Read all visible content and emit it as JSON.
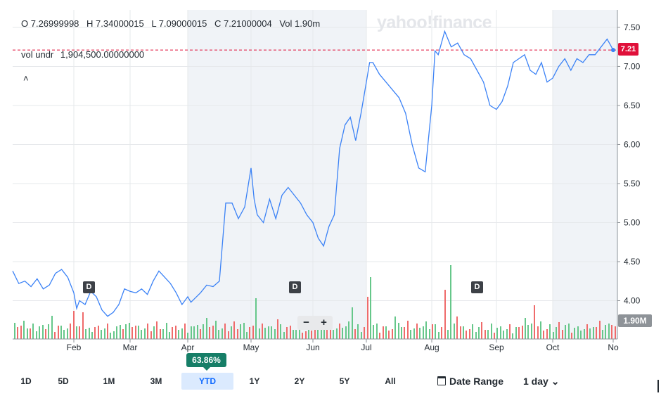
{
  "header": {
    "open": "O 7.26999998",
    "high": "H 7.34000015",
    "low": "L 7.09000015",
    "close": "C 7.21000004",
    "vol": "Vol 1.90m",
    "vol_label": "vol undr",
    "vol_value": "1,904,500.00000000",
    "collapse_icon": "chevron-up-icon"
  },
  "watermark": "yahoo!finance",
  "price_tag": "7.21",
  "volume_tag": "1.90M",
  "performance_badge": "63.86%",
  "zoom": {
    "minus": "−",
    "plus": "+"
  },
  "dividend_marker": "D",
  "ranges": [
    "1D",
    "5D",
    "1M",
    "3M",
    "YTD",
    "1Y",
    "2Y",
    "5Y",
    "All"
  ],
  "active_range": "YTD",
  "date_range_label": "Date Range",
  "interval_label": "1 day",
  "colors": {
    "line": "#3b82f6",
    "up_volume": "#66c78a",
    "down_volume": "#ef6b6b",
    "last_line": "#e0103a",
    "shade": "#f0f3f7"
  },
  "chart_data": {
    "type": "line",
    "x_tick_labels": [
      "Feb",
      "Mar",
      "Apr",
      "May",
      "Jun",
      "Jul",
      "Aug",
      "Sep",
      "Oct",
      "No"
    ],
    "y_tick_labels": [
      "7.50",
      "7.00",
      "6.50",
      "6.00",
      "5.50",
      "5.00",
      "4.50",
      "4.00"
    ],
    "ylim": [
      3.5,
      7.65
    ],
    "grid": true,
    "last_price": 7.21,
    "dividend_months": [
      "Feb",
      "Jun",
      "Aug"
    ],
    "series": [
      {
        "x_months": [
          0.0,
          0.1,
          0.2,
          0.3,
          0.4,
          0.5,
          0.6,
          0.7,
          0.8,
          0.9,
          1.0,
          1.05,
          1.1,
          1.2,
          1.3,
          1.4,
          1.5,
          1.6,
          1.7,
          1.8,
          1.9,
          2.0,
          2.1,
          2.2,
          2.3,
          2.4,
          2.5,
          2.6,
          2.7,
          2.8,
          2.9,
          3.0,
          3.05,
          3.1,
          3.2,
          3.3,
          3.4,
          3.5,
          3.6,
          3.7,
          3.8,
          3.9,
          4.0,
          4.05,
          4.1,
          4.2,
          4.3,
          4.4,
          4.5,
          4.6,
          4.7,
          4.8,
          4.9,
          5.0,
          5.1,
          5.2,
          5.3,
          5.4,
          5.5,
          5.6,
          5.7,
          5.8,
          5.9,
          6.0,
          6.05,
          6.1,
          6.2,
          6.3,
          6.4,
          6.5,
          6.6,
          6.7,
          6.8,
          6.9,
          7.0,
          7.05,
          7.1,
          7.2,
          7.3,
          7.4,
          7.5,
          7.6,
          7.7,
          7.8,
          7.9,
          8.0,
          8.1,
          8.2,
          8.3,
          8.4,
          8.5,
          8.6,
          8.7,
          8.8,
          8.9,
          9.0,
          9.1,
          9.2,
          9.3,
          9.4,
          9.5,
          9.6,
          9.7,
          9.8,
          9.9,
          10.0
        ],
        "values": [
          4.38,
          4.22,
          4.25,
          4.18,
          4.28,
          4.15,
          4.2,
          4.35,
          4.4,
          4.3,
          4.1,
          3.9,
          4.0,
          3.95,
          4.12,
          4.05,
          3.88,
          3.8,
          3.85,
          3.95,
          4.15,
          4.12,
          4.1,
          4.15,
          4.08,
          4.25,
          4.38,
          4.3,
          4.22,
          4.1,
          3.95,
          4.05,
          3.98,
          4.02,
          4.1,
          4.2,
          4.18,
          4.25,
          5.25,
          5.25,
          5.05,
          5.2,
          5.7,
          5.3,
          5.1,
          5.0,
          5.3,
          5.05,
          5.35,
          5.45,
          5.35,
          5.25,
          5.1,
          5.0,
          4.8,
          4.7,
          4.95,
          5.1,
          5.95,
          6.25,
          6.35,
          6.05,
          6.4,
          6.8,
          7.05,
          7.05,
          6.9,
          6.8,
          6.7,
          6.6,
          6.4,
          6.0,
          5.7,
          5.65,
          6.5,
          7.2,
          7.15,
          7.45,
          7.25,
          7.3,
          7.15,
          7.1,
          6.95,
          6.8,
          6.5,
          6.45,
          6.55,
          6.75,
          7.05,
          7.1,
          7.15,
          6.95,
          6.9,
          7.05,
          6.8,
          6.85,
          7.0,
          7.1,
          6.95,
          7.1,
          7.05,
          7.15,
          7.15,
          7.25,
          7.35,
          7.21
        ]
      }
    ]
  }
}
